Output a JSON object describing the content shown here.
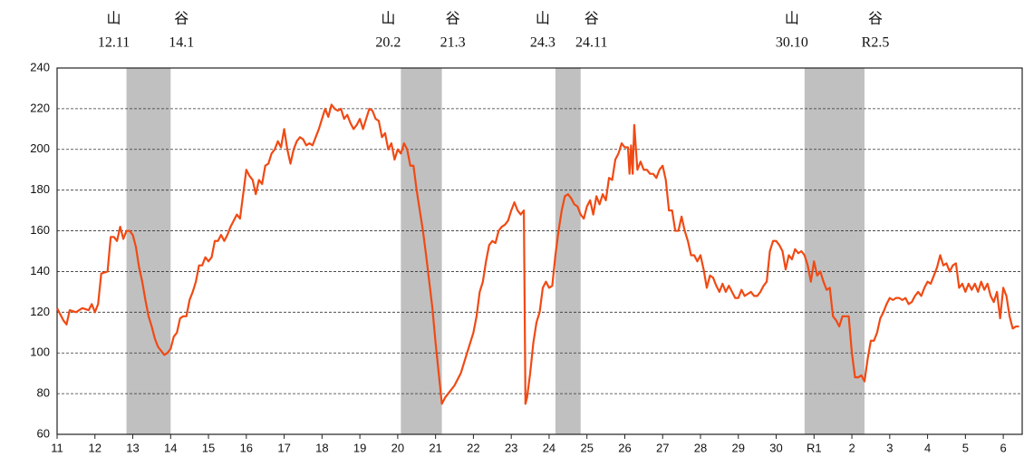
{
  "chart_data": {
    "type": "line",
    "xlim": [
      0,
      306
    ],
    "ylim": [
      60,
      240
    ],
    "yticks": [
      60,
      80,
      100,
      120,
      140,
      160,
      180,
      200,
      220,
      240
    ],
    "xticks": [
      {
        "value": 0,
        "label": "11"
      },
      {
        "value": 12,
        "label": "12"
      },
      {
        "value": 24,
        "label": "13"
      },
      {
        "value": 36,
        "label": "14"
      },
      {
        "value": 48,
        "label": "15"
      },
      {
        "value": 60,
        "label": "16"
      },
      {
        "value": 72,
        "label": "17"
      },
      {
        "value": 84,
        "label": "18"
      },
      {
        "value": 96,
        "label": "19"
      },
      {
        "value": 108,
        "label": "20"
      },
      {
        "value": 120,
        "label": "21"
      },
      {
        "value": 132,
        "label": "22"
      },
      {
        "value": 144,
        "label": "23"
      },
      {
        "value": 156,
        "label": "24"
      },
      {
        "value": 168,
        "label": "25"
      },
      {
        "value": 180,
        "label": "26"
      },
      {
        "value": 192,
        "label": "27"
      },
      {
        "value": 204,
        "label": "28"
      },
      {
        "value": 216,
        "label": "29"
      },
      {
        "value": 228,
        "label": "30"
      },
      {
        "value": 240,
        "label": "R1"
      },
      {
        "value": 252,
        "label": "2"
      },
      {
        "value": 264,
        "label": "3"
      },
      {
        "value": 276,
        "label": "4"
      },
      {
        "value": 288,
        "label": "5"
      },
      {
        "value": 300,
        "label": "6"
      }
    ],
    "grid": true,
    "recession_color": "#c0c0c0",
    "recessions": [
      {
        "start": 22,
        "end": 36,
        "peak_label": "山",
        "peak_date": "12.11",
        "trough_label": "谷",
        "trough_date": "14.1"
      },
      {
        "start": 109,
        "end": 122,
        "peak_label": "山",
        "peak_date": "20.2",
        "trough_label": "谷",
        "trough_date": "21.3"
      },
      {
        "start": 158,
        "end": 166,
        "peak_label": "山",
        "peak_date": "24.3",
        "trough_label": "谷",
        "trough_date": "24.11"
      },
      {
        "start": 237,
        "end": 256,
        "peak_label": "山",
        "peak_date": "30.10",
        "trough_label": "谷",
        "trough_date": "R2.5"
      }
    ],
    "series": [
      {
        "color": "#f04a14",
        "x": [
          0,
          2,
          3,
          4,
          6,
          8,
          10,
          11,
          12,
          13,
          14,
          16,
          17,
          18,
          19,
          20,
          21,
          22,
          23,
          24,
          25,
          26,
          27,
          28,
          29,
          30,
          31,
          32,
          33,
          34,
          35,
          36,
          37,
          38,
          39,
          40,
          41,
          42,
          43,
          44,
          45,
          46,
          47,
          48,
          49,
          50,
          51,
          52,
          53,
          54,
          55,
          56,
          57,
          58,
          59,
          60,
          61,
          62,
          63,
          64,
          65,
          66,
          67,
          68,
          69,
          70,
          71,
          72,
          73,
          74,
          75,
          76,
          77,
          78,
          79,
          80,
          81,
          82,
          83,
          84,
          85,
          86,
          87,
          88,
          89,
          90,
          91,
          92,
          93,
          94,
          95,
          96,
          97,
          98,
          99,
          100,
          101,
          102,
          103,
          104,
          105,
          106,
          107,
          108,
          109,
          110,
          111,
          112,
          113,
          114,
          115,
          116,
          117,
          118,
          119,
          120,
          121,
          122,
          123,
          124,
          126,
          128,
          130,
          132,
          133,
          134,
          135,
          136,
          137,
          138,
          139,
          140,
          141,
          142,
          143,
          144,
          145,
          146,
          147,
          148,
          148.5,
          149,
          150,
          151,
          152,
          153,
          154,
          155,
          156,
          157,
          158,
          159,
          160,
          161,
          162,
          163,
          164,
          165,
          166,
          167,
          168,
          169,
          170,
          171,
          172,
          173,
          174,
          175,
          176,
          177,
          178,
          179,
          180,
          181,
          181.5,
          182,
          182.5,
          183,
          184,
          185,
          186,
          187,
          188,
          189,
          190,
          191,
          192,
          193,
          194,
          195,
          196,
          197,
          198,
          199,
          200,
          201,
          202,
          203,
          204,
          205,
          206,
          207,
          208,
          209,
          210,
          211,
          212,
          213,
          214,
          215,
          216,
          217,
          218,
          219,
          220,
          221,
          222,
          223,
          224,
          225,
          226,
          227,
          228,
          229,
          230,
          231,
          232,
          233,
          234,
          235,
          236,
          237,
          238,
          239,
          240,
          241,
          242,
          243,
          244,
          245,
          246,
          247,
          248,
          249,
          250,
          251,
          252,
          253,
          254,
          255,
          256,
          257,
          258,
          259,
          260,
          261,
          262,
          263,
          264,
          265,
          266,
          267,
          268,
          269,
          270,
          271,
          272,
          273,
          274,
          275,
          276,
          277,
          278,
          279,
          280,
          281,
          282,
          283,
          284,
          285,
          286,
          287,
          288,
          289,
          290,
          291,
          292,
          293,
          294,
          295,
          296,
          297,
          298,
          299,
          300,
          301,
          302,
          303,
          304,
          305
        ],
        "values": [
          122,
          116,
          114,
          121,
          120,
          122,
          121,
          124,
          120,
          124,
          139,
          140,
          157,
          157,
          155,
          162,
          156,
          160,
          160,
          158,
          152,
          142,
          135,
          126,
          118,
          113,
          107,
          103,
          101,
          99,
          100,
          102,
          108,
          110,
          117,
          118,
          118,
          126,
          130,
          135,
          143,
          143,
          147,
          145,
          147,
          155,
          155,
          158,
          155,
          158,
          162,
          165,
          168,
          166,
          178,
          190,
          187,
          185,
          178,
          185,
          183,
          192,
          193,
          198,
          200,
          204,
          201,
          210,
          200,
          193,
          200,
          204,
          206,
          205,
          202,
          203,
          202,
          206,
          210,
          215,
          220,
          216,
          222,
          220,
          219,
          220,
          215,
          217,
          213,
          210,
          212,
          215,
          210,
          215,
          220,
          219,
          215,
          214,
          206,
          208,
          200,
          203,
          195,
          200,
          198,
          203,
          200,
          192,
          192,
          180,
          170,
          160,
          148,
          135,
          122,
          105,
          90,
          75,
          78,
          80,
          84,
          90,
          100,
          110,
          118,
          130,
          135,
          145,
          153,
          155,
          154,
          160,
          162,
          163,
          165,
          170,
          174,
          170,
          168,
          170,
          75,
          78,
          90,
          105,
          115,
          120,
          132,
          135,
          132,
          133,
          148,
          160,
          170,
          177,
          178,
          176,
          173,
          172,
          168,
          166,
          172,
          175,
          168,
          177,
          173,
          178,
          175,
          186,
          185,
          195,
          198,
          203,
          201,
          201,
          188,
          202,
          188,
          212,
          190,
          194,
          190,
          190,
          188,
          188,
          186,
          190,
          192,
          185,
          170,
          170,
          160,
          160,
          167,
          160,
          155,
          148,
          148,
          145,
          148,
          141,
          132,
          138,
          137,
          133,
          130,
          134,
          130,
          133,
          130,
          127,
          127,
          131,
          128,
          129,
          130,
          128,
          128,
          130,
          133,
          135,
          150,
          155,
          155,
          153,
          150,
          141,
          148,
          146,
          151,
          149,
          150,
          148,
          143,
          135,
          145,
          138,
          140,
          135,
          131,
          132,
          118,
          116,
          113,
          118,
          118,
          118,
          100,
          88,
          88,
          89,
          86,
          97,
          106,
          106,
          110,
          117,
          120,
          124,
          127,
          126,
          127,
          127,
          126,
          127,
          124,
          125,
          128,
          130,
          128,
          132,
          135,
          134,
          138,
          142,
          148,
          143,
          144,
          140,
          143,
          144,
          132,
          134,
          130,
          134,
          131,
          134,
          130,
          135,
          131,
          134,
          128,
          125,
          130,
          117,
          132,
          128,
          118,
          112,
          113,
          113
        ]
      }
    ]
  }
}
